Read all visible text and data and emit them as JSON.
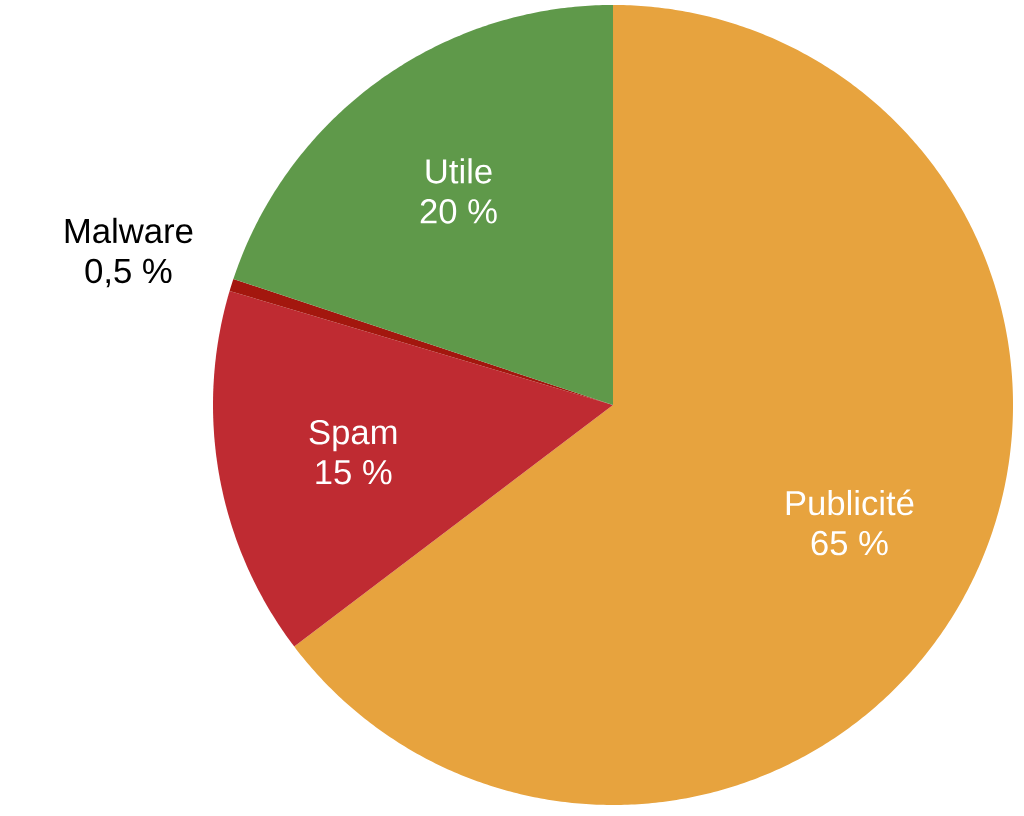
{
  "chart_data": {
    "type": "pie",
    "categories": [
      "Publicité",
      "Spam",
      "Malware",
      "Utile"
    ],
    "values": [
      65,
      15,
      0.5,
      20
    ],
    "colors": [
      "#e7a33e",
      "#bf2b32",
      "#a3170e",
      "#5f994a"
    ],
    "value_labels": [
      "65 %",
      "15 %",
      "0,5 %",
      "20 %"
    ]
  }
}
